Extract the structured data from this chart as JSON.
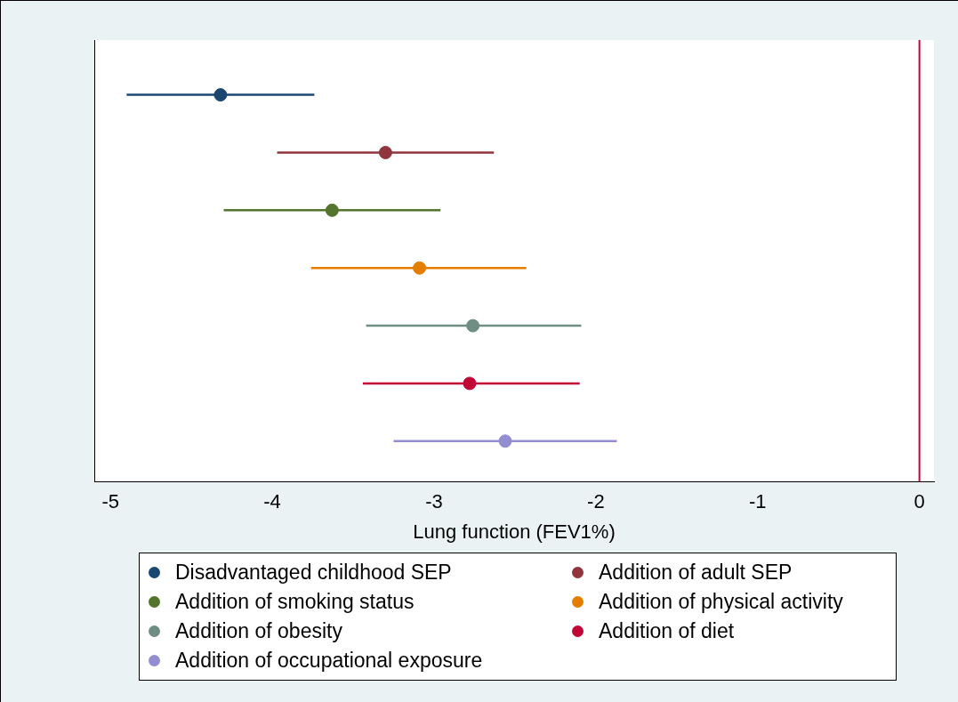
{
  "chart_data": {
    "type": "scatter",
    "orientation": "horizontal",
    "xlabel": "Lung function (FEV1%)",
    "categories": [
      null,
      null,
      null,
      null,
      null,
      null,
      null
    ],
    "xlim": [
      -5.1,
      0.09
    ],
    "xticks": [
      -5,
      -4,
      -3,
      -2,
      -1,
      0
    ],
    "grid": false,
    "legend": "bottom",
    "marker": "circle",
    "series": [
      {
        "name": "Disadvantaged childhood SEP",
        "color": "#1a476f",
        "values": [
          -4.32,
          null,
          null,
          null,
          null,
          null,
          null
        ],
        "errors": [
          [
            -4.9,
            -3.74
          ],
          null,
          null,
          null,
          null,
          null,
          null
        ]
      },
      {
        "name": "Addition of adult SEP",
        "color": "#90353b",
        "values": [
          null,
          -3.3,
          null,
          null,
          null,
          null,
          null
        ],
        "errors": [
          null,
          [
            -3.97,
            -2.63
          ],
          null,
          null,
          null,
          null,
          null
        ]
      },
      {
        "name": "Addition of smoking status",
        "color": "#55752f",
        "values": [
          null,
          null,
          -3.63,
          null,
          null,
          null,
          null
        ],
        "errors": [
          null,
          null,
          [
            -4.3,
            -2.96
          ],
          null,
          null,
          null,
          null
        ]
      },
      {
        "name": "Addition of physical activity",
        "color": "#e37e00",
        "values": [
          null,
          null,
          null,
          -3.09,
          null,
          null,
          null
        ],
        "errors": [
          null,
          null,
          null,
          [
            -3.76,
            -2.43
          ],
          null,
          null,
          null
        ]
      },
      {
        "name": "Addition of obesity",
        "color": "#6e8e84",
        "values": [
          null,
          null,
          null,
          null,
          -2.76,
          null,
          null
        ],
        "errors": [
          null,
          null,
          null,
          null,
          [
            -3.42,
            -2.09
          ],
          null,
          null
        ]
      },
      {
        "name": "Addition of diet",
        "color": "#c10534",
        "values": [
          null,
          null,
          null,
          null,
          null,
          -2.78,
          null
        ],
        "errors": [
          null,
          null,
          null,
          null,
          null,
          [
            -3.44,
            -2.1
          ],
          null
        ]
      },
      {
        "name": "Addition of occupational exposure",
        "color": "#938dd2",
        "values": [
          null,
          null,
          null,
          null,
          null,
          null,
          -2.56
        ],
        "errors": [
          null,
          null,
          null,
          null,
          null,
          null,
          [
            -3.25,
            -1.87
          ]
        ]
      }
    ],
    "ref_lines": [
      {
        "axis": "x",
        "value": 0,
        "color": "#c10534"
      }
    ]
  }
}
